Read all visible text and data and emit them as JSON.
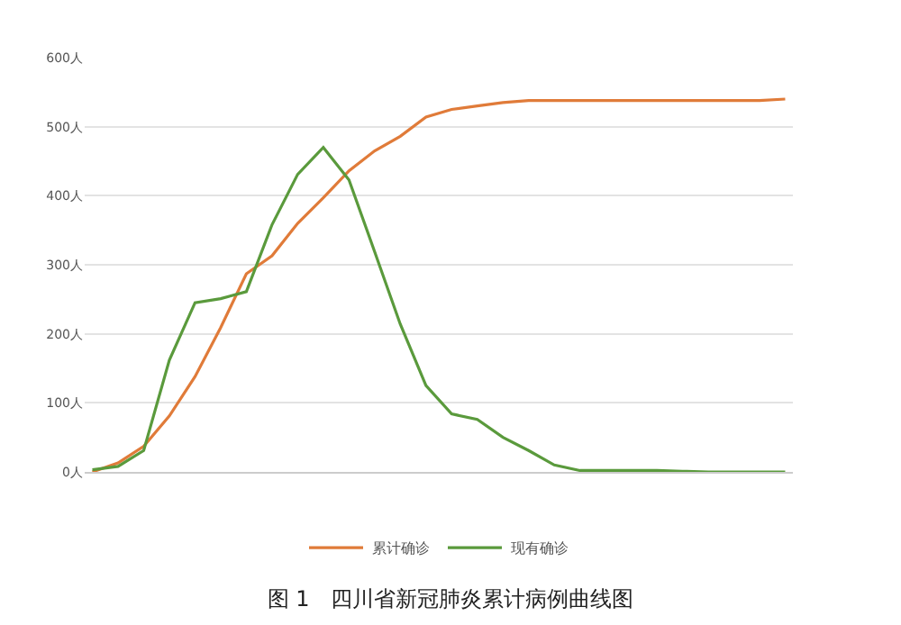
{
  "chart_data": {
    "type": "line",
    "title": "图 1　四川省新冠肺炎累计病例曲线图",
    "categories": [
      null,
      null,
      null,
      null,
      null,
      null,
      null,
      null,
      null,
      null,
      null,
      null,
      null,
      null,
      null,
      null,
      null,
      null,
      null,
      null,
      null,
      null,
      null,
      null,
      null,
      null,
      null,
      null
    ],
    "series": [
      {
        "name": "累计确诊",
        "color": "#e07b39",
        "values": [
          0,
          13,
          37,
          81,
          138,
          209,
          287,
          313,
          360,
          397,
          436,
          465,
          486,
          514,
          525,
          530,
          535,
          538,
          538,
          538,
          538,
          538,
          538,
          538,
          538,
          538,
          538,
          540
        ]
      },
      {
        "name": "现有确诊",
        "color": "#5a9a3c",
        "values": [
          3,
          8,
          31,
          162,
          245,
          251,
          261,
          358,
          431,
          470,
          423,
          319,
          214,
          125,
          84,
          76,
          50,
          31,
          10,
          2,
          2,
          2,
          2,
          1,
          0,
          0,
          0,
          0
        ]
      }
    ],
    "ylim": [
      0,
      600
    ],
    "yticks": [
      {
        "value": 0,
        "label": "0人"
      },
      {
        "value": 100,
        "label": "100人"
      },
      {
        "value": 200,
        "label": "200人"
      },
      {
        "value": 300,
        "label": "300人"
      },
      {
        "value": 400,
        "label": "400人"
      },
      {
        "value": 500,
        "label": "500人"
      },
      {
        "value": 600,
        "label": "600人"
      }
    ],
    "grid": "y",
    "legend": "bottom",
    "marker": "none",
    "line_style": "solid"
  }
}
